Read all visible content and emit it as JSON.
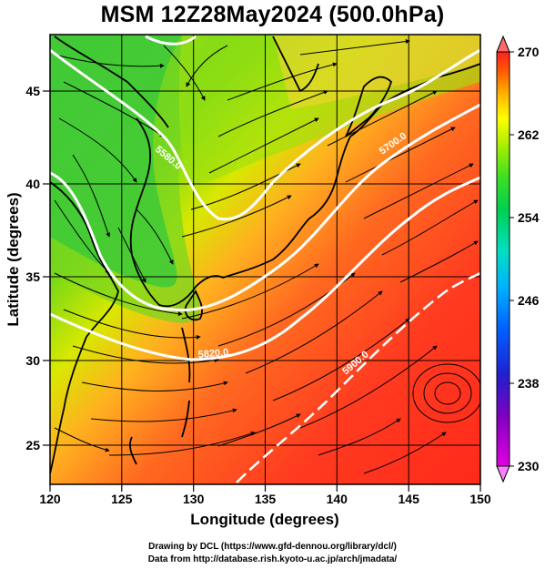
{
  "title": "MSM 12Z28May2024 (500.0hPa)",
  "x_axis_label": "Longitude (degrees)",
  "y_axis_label": "Latitude  (degrees)",
  "x_ticks": [
    "120",
    "125",
    "130",
    "135",
    "140",
    "145",
    "150"
  ],
  "y_ticks": [
    "25",
    "30",
    "35",
    "40",
    "45"
  ],
  "colorbar": {
    "ticks": [
      "230",
      "238",
      "246",
      "254",
      "262",
      "270"
    ],
    "min": 230,
    "max": 270,
    "colors": [
      "#e000e0",
      "#8000c0",
      "#2020d0",
      "#0060ff",
      "#00b0ff",
      "#00e0c0",
      "#00d050",
      "#40e020",
      "#b0f000",
      "#ffff00",
      "#ffb000",
      "#ff6000",
      "#ff2020"
    ]
  },
  "contour_labels": [
    "5580.0",
    "5700.0",
    "5820.0",
    "5900.0"
  ],
  "credits": {
    "line1": "Drawing by DCL (https://www.gfd-dennou.org/library/dcl/)",
    "line2": "Data from http://database.rish.kyoto-u.ac.jp/arch/jmadata/"
  },
  "map": {
    "lon_range": [
      120,
      150
    ],
    "lat_range": [
      22.7,
      47.7
    ]
  }
}
